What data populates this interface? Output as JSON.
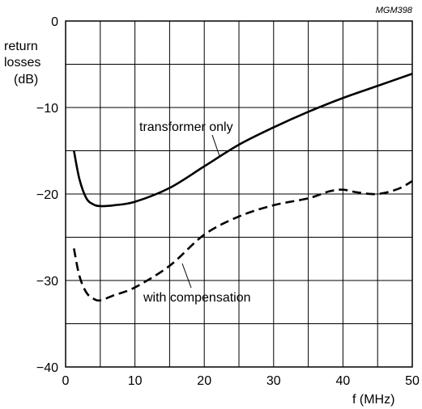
{
  "figure_id": "MGM398",
  "chart_data": {
    "type": "line",
    "xlabel": "f (MHz)",
    "ylabel": [
      "return",
      "losses",
      "(dB)"
    ],
    "xlim": [
      0,
      50
    ],
    "ylim": [
      -40,
      0
    ],
    "x_ticks": [
      0,
      10,
      20,
      30,
      40,
      50
    ],
    "y_ticks": [
      0,
      -10,
      -20,
      -30,
      -40
    ],
    "x_tick_labels": [
      "0",
      "10",
      "20",
      "30",
      "40",
      "50"
    ],
    "y_tick_labels": [
      "0",
      "−10",
      "−20",
      "−30",
      "−40"
    ],
    "x_grid_step": 5,
    "y_grid_step": 5,
    "grid": true,
    "series": [
      {
        "name": "transformer only",
        "style": "solid",
        "color": "#000000",
        "x": [
          1.2,
          2,
          3,
          4,
          5,
          7,
          10,
          15,
          20,
          25,
          30,
          35,
          40,
          45,
          50
        ],
        "y": [
          -15.0,
          -18.3,
          -20.5,
          -21.2,
          -21.4,
          -21.3,
          -20.9,
          -19.3,
          -16.8,
          -14.3,
          -12.3,
          -10.5,
          -8.9,
          -7.5,
          -6.1
        ]
      },
      {
        "name": "with compensation",
        "style": "dashed",
        "color": "#000000",
        "x": [
          1.2,
          2,
          3,
          4,
          5,
          7,
          10,
          15,
          20,
          25,
          30,
          35,
          38,
          40,
          42,
          45,
          48,
          50
        ],
        "y": [
          -26.3,
          -29.5,
          -31.4,
          -32.1,
          -32.3,
          -31.7,
          -30.8,
          -28.3,
          -24.7,
          -22.6,
          -21.3,
          -20.5,
          -19.7,
          -19.5,
          -19.8,
          -20.0,
          -19.4,
          -18.5
        ]
      }
    ],
    "annotations": [
      {
        "text": "transformer only",
        "series": 0
      },
      {
        "text": "with compensation",
        "series": 1
      }
    ]
  }
}
